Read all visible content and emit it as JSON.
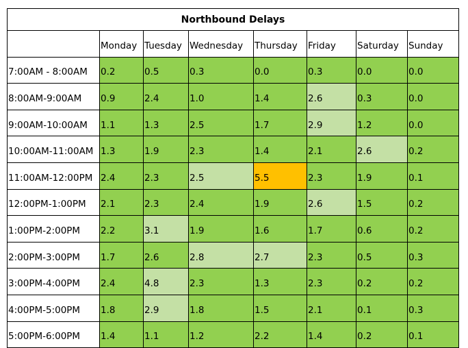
{
  "title": "Northbound Delays",
  "days": [
    "Monday",
    "Tuesday",
    "Wednesday",
    "Thursday",
    "Friday",
    "Saturday",
    "Sunday"
  ],
  "levels": {
    "normal": "#92d050",
    "elevated": "#c4e0a5",
    "peak": "#ffc000"
  },
  "rows": [
    {
      "time": "7:00AM - 8:00AM",
      "values": [
        "0.2",
        "0.5",
        "0.3",
        "0.0",
        "0.3",
        "0.0",
        "0.0"
      ],
      "levels": [
        "normal",
        "normal",
        "normal",
        "normal",
        "normal",
        "normal",
        "normal"
      ]
    },
    {
      "time": "8:00AM-9:00AM",
      "values": [
        "0.9",
        "2.4",
        "1.0",
        "1.4",
        "2.6",
        "0.3",
        "0.0"
      ],
      "levels": [
        "normal",
        "normal",
        "normal",
        "normal",
        "elevated",
        "normal",
        "normal"
      ]
    },
    {
      "time": "9:00AM-10:00AM",
      "values": [
        "1.1",
        "1.3",
        "2.5",
        "1.7",
        "2.9",
        "1.2",
        "0.0"
      ],
      "levels": [
        "normal",
        "normal",
        "normal",
        "normal",
        "elevated",
        "normal",
        "normal"
      ]
    },
    {
      "time": "10:00AM-11:00AM",
      "values": [
        "1.3",
        "1.9",
        "2.3",
        "1.4",
        "2.1",
        "2.6",
        "0.2"
      ],
      "levels": [
        "normal",
        "normal",
        "normal",
        "normal",
        "normal",
        "elevated",
        "normal"
      ]
    },
    {
      "time": "11:00AM-12:00PM",
      "values": [
        "2.4",
        "2.3",
        "2.5",
        "5.5",
        "2.3",
        "1.9",
        "0.1"
      ],
      "levels": [
        "normal",
        "normal",
        "elevated",
        "peak",
        "normal",
        "normal",
        "normal"
      ]
    },
    {
      "time": "12:00PM-1:00PM",
      "values": [
        "2.1",
        "2.3",
        "2.4",
        "1.9",
        "2.6",
        "1.5",
        "0.2"
      ],
      "levels": [
        "normal",
        "normal",
        "normal",
        "normal",
        "elevated",
        "normal",
        "normal"
      ]
    },
    {
      "time": "1:00PM-2:00PM",
      "values": [
        "2.2",
        "3.1",
        "1.9",
        "1.6",
        "1.7",
        "0.6",
        "0.2"
      ],
      "levels": [
        "normal",
        "elevated",
        "normal",
        "normal",
        "normal",
        "normal",
        "normal"
      ]
    },
    {
      "time": "2:00PM-3:00PM",
      "values": [
        "1.7",
        "2.6",
        "2.8",
        "2.7",
        "2.3",
        "0.5",
        "0.3"
      ],
      "levels": [
        "normal",
        "normal",
        "elevated",
        "elevated",
        "normal",
        "normal",
        "normal"
      ]
    },
    {
      "time": "3:00PM-4:00PM",
      "values": [
        "2.4",
        "4.8",
        "2.3",
        "1.3",
        "2.3",
        "0.2",
        "0.2"
      ],
      "levels": [
        "normal",
        "elevated",
        "normal",
        "normal",
        "normal",
        "normal",
        "normal"
      ]
    },
    {
      "time": "4:00PM-5:00PM",
      "values": [
        "1.8",
        "2.9",
        "1.8",
        "1.5",
        "2.1",
        "0.1",
        "0.3"
      ],
      "levels": [
        "normal",
        "elevated",
        "normal",
        "normal",
        "normal",
        "normal",
        "normal"
      ]
    },
    {
      "time": "5:00PM-6:00PM",
      "values": [
        "1.4",
        "1.1",
        "1.2",
        "2.2",
        "1.4",
        "0.2",
        "0.1"
      ],
      "levels": [
        "normal",
        "normal",
        "normal",
        "normal",
        "normal",
        "normal",
        "normal"
      ]
    }
  ]
}
